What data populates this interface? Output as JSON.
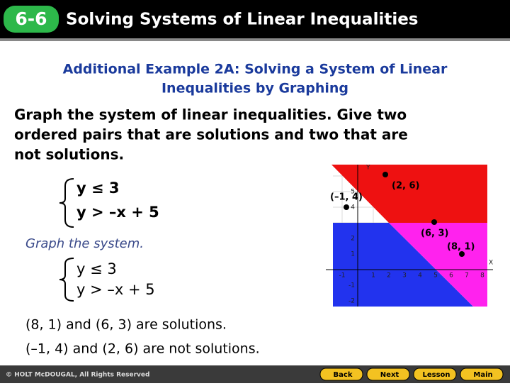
{
  "header": {
    "badge": "6-6",
    "title": "Solving Systems of Linear Inequalities"
  },
  "subtitle": [
    "Additional Example 2A: Solving a System of  Linear",
    "Inequalities by Graphing"
  ],
  "instructions": [
    "Graph the system of linear inequalities. Give two",
    "ordered pairs that are solutions and two that are",
    "not solutions."
  ],
  "system": [
    "y ≤ 3",
    "y > –x + 5"
  ],
  "step": "Graph the system.",
  "system_repeat": [
    "y ≤ 3",
    "y > –x + 5"
  ],
  "answers": [
    "(8, 1) and (6, 3) are solutions.",
    "(–1, 4) and (2, 6) are not solutions."
  ],
  "graph": {
    "y_axis_label": "Y",
    "x_axis_label": "X",
    "x_tick_labels": [
      "-1",
      "1",
      "2",
      "3",
      "4",
      "5",
      "6",
      "7",
      "8"
    ],
    "y_tick_labels": [
      "5",
      "4",
      "2",
      "1",
      "-1",
      "-2"
    ],
    "points": [
      "(–1, 4)",
      "(2, 6)",
      "(6, 3)",
      "(8, 1)"
    ]
  },
  "footer": {
    "copyright": "© HOLT McDOUGAL, All Rights Reserved",
    "buttons": [
      "Back",
      "Next",
      "Lesson",
      "Main"
    ]
  }
}
